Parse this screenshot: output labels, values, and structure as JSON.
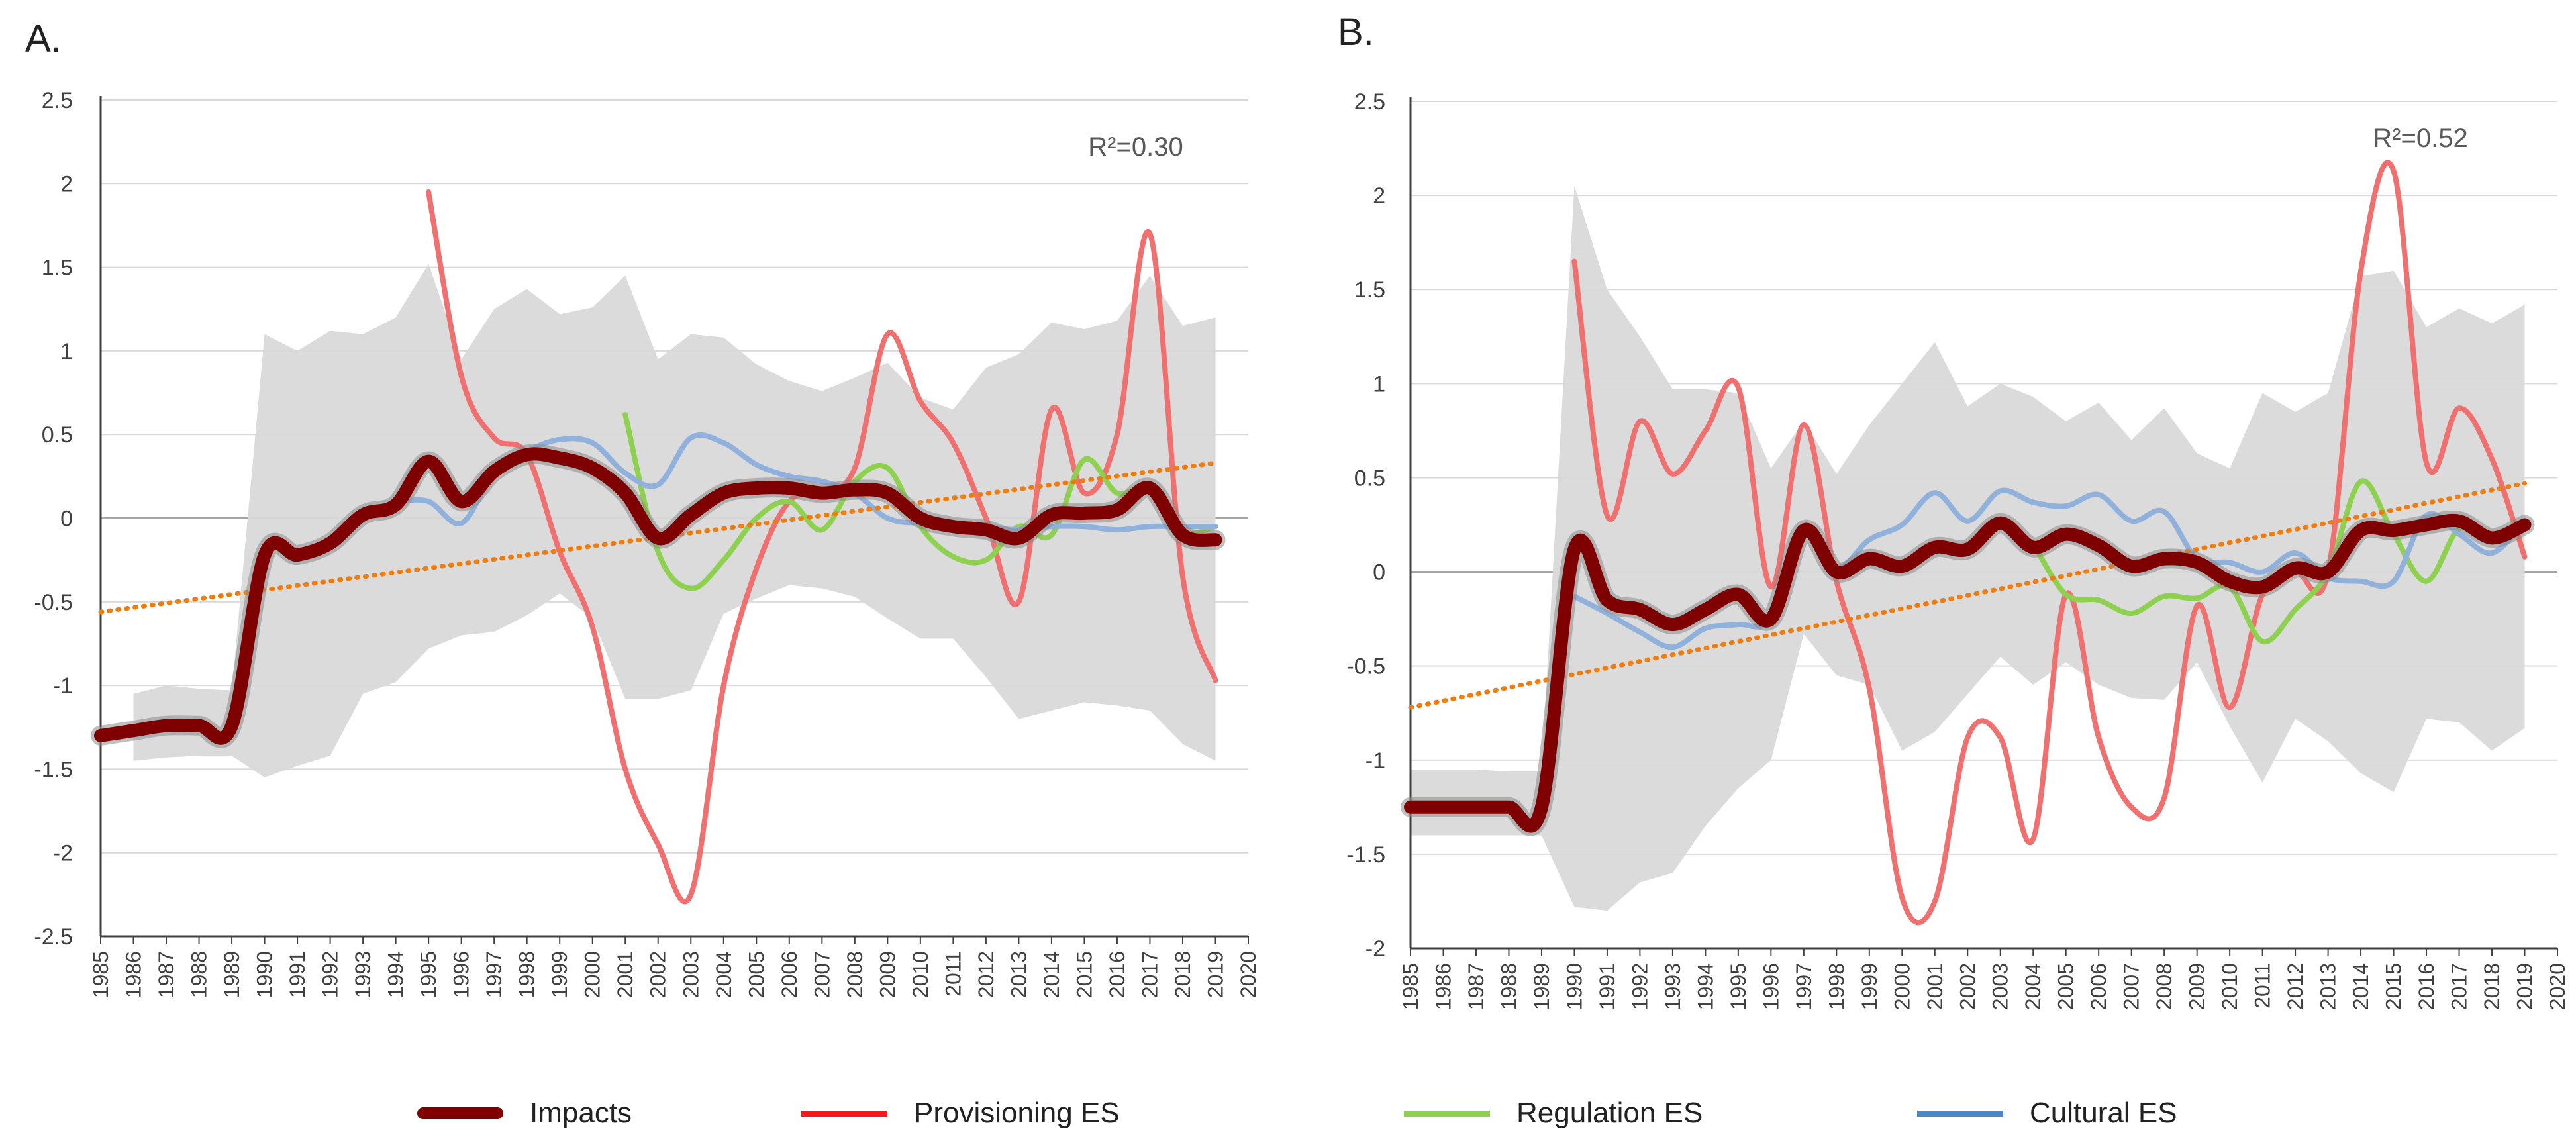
{
  "colors": {
    "impacts": "#7f0000",
    "provisioning": "#f07070",
    "regulation": "#8ed150",
    "cultural": "#8fb1dc",
    "trend": "#ee7d10",
    "band": "#d9d9d9",
    "axis": "#404040",
    "grid": "#d9d9d9"
  },
  "legend": {
    "impacts": "Impacts",
    "provisioning": "Provisioning ES",
    "regulation": "Regulation ES",
    "cultural": "Cultural ES"
  },
  "chart_data": [
    {
      "panel_label": "A.",
      "type": "line",
      "annotation": "R²=0.30",
      "xlim": [
        1985,
        2020
      ],
      "ylim": [
        -2.5,
        2.5
      ],
      "ytick_step": 0.5,
      "ytick_labels": [
        "2.5",
        "2",
        "1.5",
        "1",
        "0.5",
        "0",
        "-0.5",
        "-1",
        "-1.5",
        "-2",
        "-2.5"
      ],
      "grid": true,
      "x_tick_labels": [
        "1985",
        "1986",
        "1987",
        "1988",
        "1989",
        "1990",
        "1991",
        "1992",
        "1993",
        "1994",
        "1995",
        "1996",
        "1997",
        "1998",
        "1999",
        "2000",
        "2001",
        "2002",
        "2003",
        "2004",
        "2005",
        "2006",
        "2007",
        "2008",
        "2009",
        "2010",
        "2011",
        "2012",
        "2013",
        "2014",
        "2015",
        "2016",
        "2017",
        "2018",
        "2019",
        "2020"
      ],
      "band": {
        "x": [
          1986,
          1987,
          1988,
          1989,
          1990,
          1991,
          1992,
          1993,
          1994,
          1995,
          1996,
          1997,
          1998,
          1999,
          2000,
          2001,
          2002,
          2003,
          2004,
          2005,
          2006,
          2007,
          2008,
          2009,
          2010,
          2011,
          2012,
          2013,
          2014,
          2015,
          2016,
          2017,
          2018,
          2019
        ],
        "upper": [
          -1.05,
          -1.0,
          -1.02,
          -1.03,
          1.1,
          1.0,
          1.12,
          1.1,
          1.2,
          1.52,
          0.95,
          1.25,
          1.37,
          1.22,
          1.26,
          1.45,
          0.95,
          1.1,
          1.08,
          0.92,
          0.82,
          0.76,
          0.84,
          0.93,
          0.72,
          0.65,
          0.9,
          0.98,
          1.17,
          1.13,
          1.18,
          1.45,
          1.15,
          1.2
        ],
        "lower": [
          -1.45,
          -1.43,
          -1.42,
          -1.42,
          -1.55,
          -1.48,
          -1.42,
          -1.05,
          -0.98,
          -0.78,
          -0.7,
          -0.68,
          -0.58,
          -0.45,
          -0.6,
          -1.08,
          -1.08,
          -1.03,
          -0.57,
          -0.48,
          -0.4,
          -0.42,
          -0.47,
          -0.6,
          -0.72,
          -0.72,
          -0.95,
          -1.2,
          -1.15,
          -1.1,
          -1.12,
          -1.15,
          -1.35,
          -1.45
        ]
      },
      "series": [
        {
          "name": "Provisioning ES",
          "key": "provisioning",
          "x": [
            1995,
            1996,
            1997,
            1998,
            1999,
            2000,
            2001,
            2002,
            2003,
            2004,
            2005,
            2006,
            2007,
            2008,
            2009,
            2010,
            2011,
            2012,
            2013,
            2014,
            2015,
            2016,
            2017,
            2018,
            2019
          ],
          "values": [
            1.95,
            0.85,
            0.48,
            0.38,
            -0.2,
            -0.65,
            -1.5,
            -1.95,
            -2.25,
            -1.0,
            -0.3,
            0.1,
            0.15,
            0.3,
            1.1,
            0.7,
            0.45,
            0.0,
            -0.5,
            0.65,
            0.15,
            0.5,
            1.7,
            -0.35,
            -0.97
          ]
        },
        {
          "name": "Regulation ES",
          "key": "regulation",
          "x": [
            2001,
            2002,
            2003,
            2004,
            2005,
            2006,
            2007,
            2008,
            2009,
            2010,
            2011,
            2012,
            2013,
            2014,
            2015,
            2016,
            2017,
            2018,
            2019
          ],
          "values": [
            0.62,
            -0.2,
            -0.42,
            -0.25,
            0.0,
            0.1,
            -0.07,
            0.22,
            0.3,
            -0.05,
            -0.23,
            -0.25,
            -0.05,
            -0.1,
            0.35,
            0.15,
            0.18,
            -0.08,
            -0.05
          ]
        },
        {
          "name": "Cultural ES",
          "key": "cultural",
          "x": [
            1994,
            1995,
            1996,
            1997,
            1998,
            1999,
            2000,
            2001,
            2002,
            2003,
            2004,
            2005,
            2006,
            2007,
            2008,
            2009,
            2010,
            2011,
            2012,
            2013,
            2014,
            2015,
            2016,
            2017,
            2018,
            2019
          ],
          "values": [
            0.1,
            0.1,
            -0.03,
            0.27,
            0.4,
            0.47,
            0.45,
            0.27,
            0.2,
            0.48,
            0.45,
            0.32,
            0.25,
            0.22,
            0.15,
            0.0,
            -0.03,
            -0.03,
            -0.05,
            -0.07,
            -0.05,
            -0.05,
            -0.07,
            -0.05,
            -0.05,
            -0.05
          ]
        },
        {
          "name": "Impacts",
          "key": "impacts",
          "x": [
            1985,
            1986,
            1987,
            1988,
            1989,
            1990,
            1991,
            1992,
            1993,
            1994,
            1995,
            1996,
            1997,
            1998,
            1999,
            2000,
            2001,
            2002,
            2003,
            2004,
            2005,
            2006,
            2007,
            2008,
            2009,
            2010,
            2011,
            2012,
            2013,
            2014,
            2015,
            2016,
            2017,
            2018,
            2019
          ],
          "values": [
            -1.3,
            -1.27,
            -1.24,
            -1.24,
            -1.24,
            -0.22,
            -0.22,
            -0.15,
            0.02,
            0.08,
            0.34,
            0.1,
            0.28,
            0.38,
            0.36,
            0.3,
            0.15,
            -0.12,
            0.02,
            0.15,
            0.18,
            0.18,
            0.15,
            0.17,
            0.15,
            0.0,
            -0.05,
            -0.07,
            -0.12,
            0.02,
            0.03,
            0.05,
            0.18,
            -0.1,
            -0.13
          ]
        }
      ],
      "trendline": {
        "x": [
          1985,
          2019
        ],
        "y": [
          -0.56,
          0.33
        ]
      }
    },
    {
      "panel_label": "B.",
      "type": "line",
      "annotation": "R²=0.52",
      "xlim": [
        1985,
        2020
      ],
      "ylim": [
        -2,
        2.5
      ],
      "ytick_step": 0.5,
      "ytick_labels": [
        "2.5",
        "2",
        "1.5",
        "1",
        "0.5",
        "0",
        "-0.5",
        "-1",
        "-1.5",
        "-2"
      ],
      "grid": true,
      "x_tick_labels": [
        "1985",
        "1986",
        "1987",
        "1988",
        "1989",
        "1990",
        "1991",
        "1992",
        "1993",
        "1994",
        "1995",
        "1996",
        "1997",
        "1998",
        "1999",
        "2000",
        "2001",
        "2002",
        "2003",
        "2004",
        "2005",
        "2006",
        "2007",
        "2008",
        "2009",
        "2010",
        "2011",
        "2012",
        "2013",
        "2014",
        "2015",
        "2016",
        "2017",
        "2018",
        "2019",
        "2020"
      ],
      "band": {
        "x": [
          1985,
          1986,
          1987,
          1988,
          1989,
          1990,
          1991,
          1992,
          1993,
          1994,
          1995,
          1996,
          1997,
          1998,
          1999,
          2000,
          2001,
          2002,
          2003,
          2004,
          2005,
          2006,
          2007,
          2008,
          2009,
          2010,
          2011,
          2012,
          2013,
          2014,
          2015,
          2016,
          2017,
          2018,
          2019
        ],
        "upper": [
          -1.05,
          -1.05,
          -1.05,
          -1.06,
          -1.06,
          2.05,
          1.5,
          1.25,
          0.97,
          0.97,
          0.95,
          0.55,
          0.8,
          0.52,
          0.78,
          1.0,
          1.22,
          0.88,
          1.0,
          0.93,
          0.8,
          0.9,
          0.7,
          0.87,
          0.63,
          0.55,
          0.95,
          0.85,
          0.95,
          1.57,
          1.6,
          1.3,
          1.4,
          1.32,
          1.42
        ],
        "lower": [
          -1.4,
          -1.4,
          -1.4,
          -1.4,
          -1.4,
          -1.78,
          -1.8,
          -1.65,
          -1.6,
          -1.35,
          -1.15,
          -1.0,
          -0.33,
          -0.55,
          -0.6,
          -0.95,
          -0.85,
          -0.65,
          -0.45,
          -0.6,
          -0.48,
          -0.6,
          -0.67,
          -0.68,
          -0.48,
          -0.82,
          -1.12,
          -0.78,
          -0.9,
          -1.07,
          -1.17,
          -0.78,
          -0.8,
          -0.95,
          -0.83
        ]
      },
      "series": [
        {
          "name": "Provisioning ES",
          "key": "provisioning",
          "x": [
            1990,
            1991,
            1992,
            1993,
            1994,
            1995,
            1996,
            1997,
            1998,
            1999,
            2000,
            2001,
            2002,
            2003,
            2004,
            2005,
            2006,
            2007,
            2008,
            2009,
            2010,
            2011,
            2012,
            2013,
            2014,
            2015,
            2016,
            2017,
            2018,
            2019
          ],
          "values": [
            1.65,
            0.3,
            0.8,
            0.52,
            0.75,
            0.98,
            -0.08,
            0.78,
            -0.05,
            -0.62,
            -1.73,
            -1.75,
            -0.88,
            -0.88,
            -1.42,
            -0.12,
            -0.88,
            -1.25,
            -1.2,
            -0.18,
            -0.72,
            -0.12,
            0.0,
            0.0,
            1.6,
            2.13,
            0.58,
            0.87,
            0.6,
            0.08
          ]
        },
        {
          "name": "Regulation ES",
          "key": "regulation",
          "x": [
            2004,
            2005,
            2006,
            2007,
            2008,
            2009,
            2010,
            2011,
            2012,
            2013,
            2014,
            2015,
            2016,
            2017,
            2018,
            2019
          ],
          "values": [
            0.15,
            -0.12,
            -0.15,
            -0.22,
            -0.13,
            -0.14,
            -0.08,
            -0.37,
            -0.2,
            0.0,
            0.48,
            0.2,
            -0.05,
            0.23,
            0.2,
            0.27
          ]
        },
        {
          "name": "Cultural ES",
          "key": "cultural",
          "x": [
            1990,
            1991,
            1992,
            1993,
            1994,
            1995,
            1996,
            1997,
            1998,
            1999,
            2000,
            2001,
            2002,
            2003,
            2004,
            2005,
            2006,
            2007,
            2008,
            2009,
            2010,
            2011,
            2012,
            2013,
            2014,
            2015,
            2016,
            2017,
            2018,
            2019
          ],
          "values": [
            -0.13,
            -0.22,
            -0.32,
            -0.4,
            -0.3,
            -0.28,
            -0.25,
            0.2,
            0.02,
            0.17,
            0.25,
            0.42,
            0.27,
            0.43,
            0.37,
            0.35,
            0.41,
            0.27,
            0.32,
            0.07,
            0.05,
            0.0,
            0.1,
            -0.03,
            -0.05,
            -0.05,
            0.3,
            0.2,
            0.1,
            0.27
          ]
        },
        {
          "name": "Impacts",
          "key": "impacts",
          "x": [
            1985,
            1986,
            1987,
            1988,
            1989,
            1990,
            1991,
            1992,
            1993,
            1994,
            1995,
            1996,
            1997,
            1998,
            1999,
            2000,
            2001,
            2002,
            2003,
            2004,
            2005,
            2006,
            2007,
            2008,
            2009,
            2010,
            2011,
            2012,
            2013,
            2014,
            2015,
            2016,
            2017,
            2018,
            2019
          ],
          "values": [
            -1.25,
            -1.25,
            -1.25,
            -1.25,
            -1.25,
            0.12,
            -0.15,
            -0.2,
            -0.28,
            -0.2,
            -0.12,
            -0.25,
            0.22,
            0.0,
            0.07,
            0.03,
            0.13,
            0.12,
            0.26,
            0.13,
            0.2,
            0.14,
            0.03,
            0.07,
            0.05,
            -0.05,
            -0.08,
            0.02,
            0.0,
            0.22,
            0.22,
            0.25,
            0.27,
            0.18,
            0.25
          ]
        }
      ],
      "trendline": {
        "x": [
          1985,
          2019
        ],
        "y": [
          -0.72,
          0.47
        ]
      }
    }
  ]
}
